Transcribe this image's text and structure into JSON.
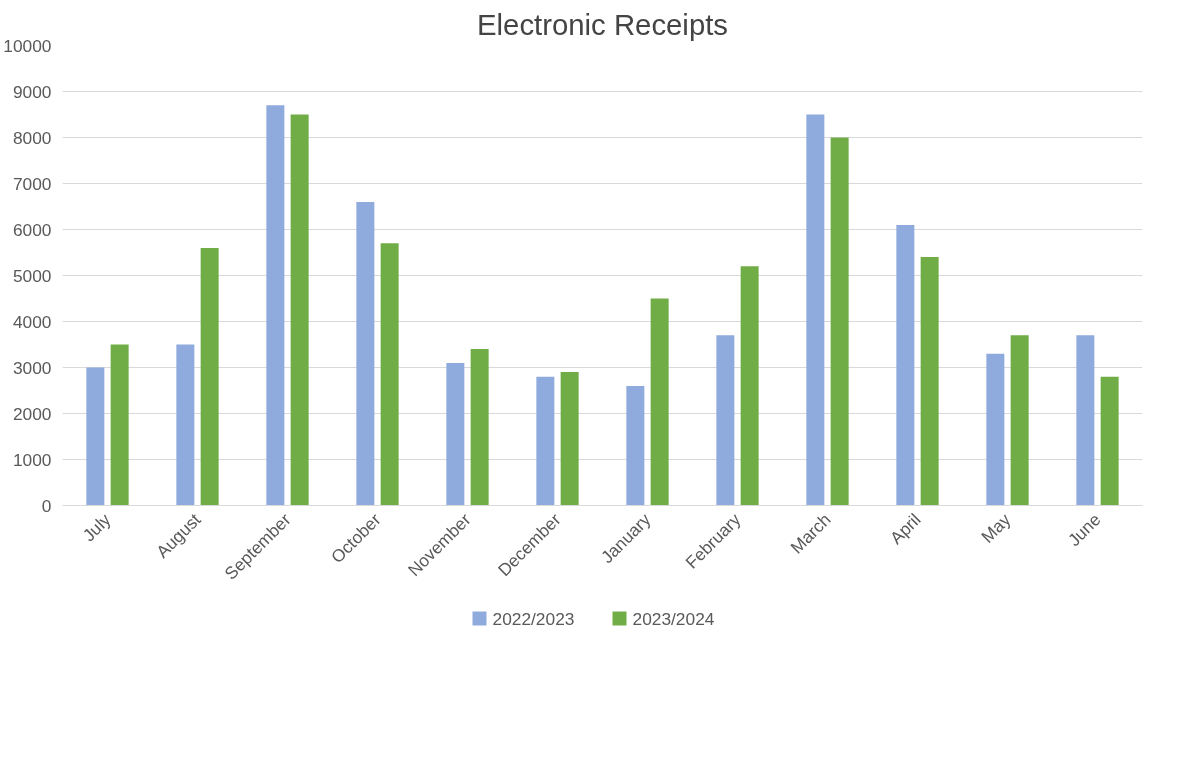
{
  "chart_data": {
    "type": "bar",
    "title": "Electronic Receipts",
    "categories": [
      "July",
      "August",
      "September",
      "October",
      "November",
      "December",
      "January",
      "February",
      "March",
      "April",
      "May",
      "June"
    ],
    "series": [
      {
        "name": "2022/2023",
        "color": "#8faadc",
        "values": [
          3000,
          3500,
          8700,
          6600,
          3100,
          2800,
          2600,
          3700,
          8500,
          6100,
          3300,
          3700
        ]
      },
      {
        "name": "2023/2024",
        "color": "#70ad47",
        "values": [
          3500,
          5600,
          8500,
          5700,
          3400,
          2900,
          4500,
          5200,
          8000,
          5400,
          3700,
          2800
        ]
      }
    ],
    "ylim": [
      0,
      10000
    ],
    "yticks": [
      0,
      1000,
      2000,
      3000,
      4000,
      5000,
      6000,
      7000,
      8000,
      9000,
      10000
    ],
    "grid": "y",
    "legend": "bottom"
  }
}
